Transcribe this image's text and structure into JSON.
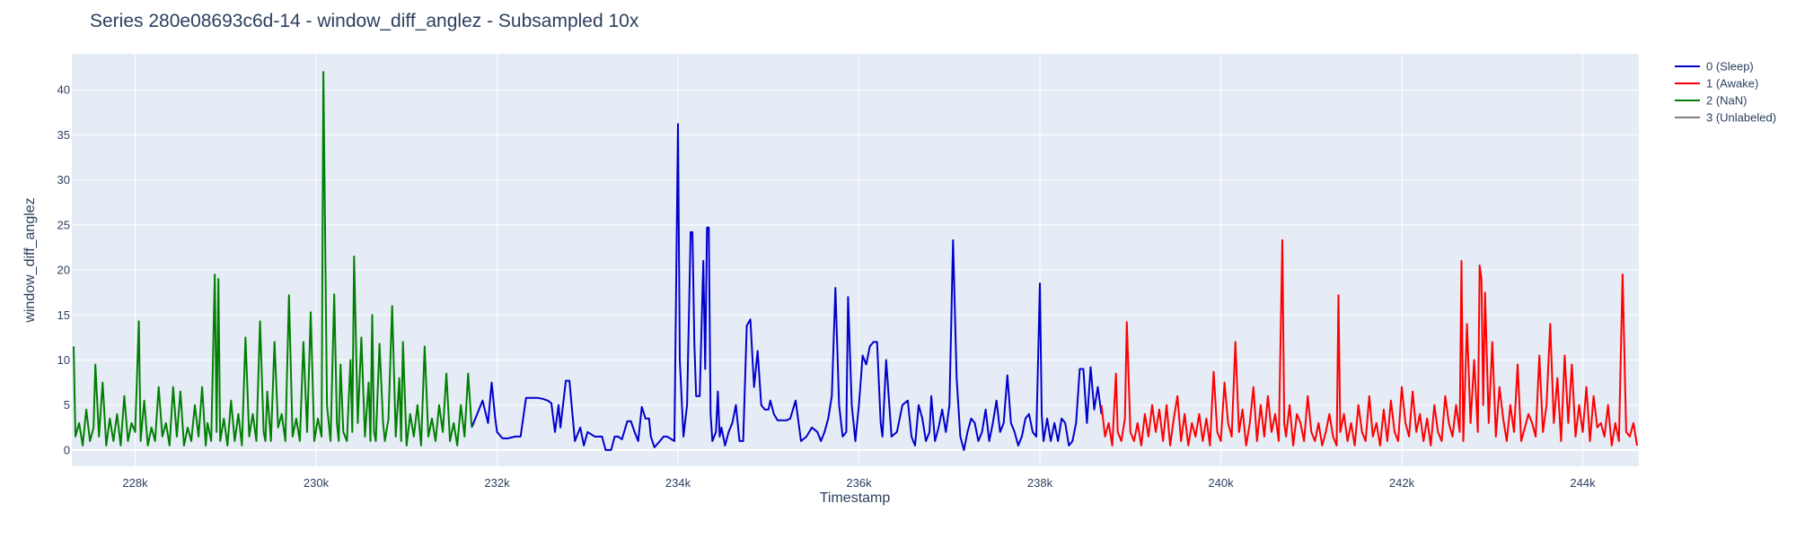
{
  "chart_data": {
    "type": "line",
    "title": "Series 280e08693c6d-14 - window_diff_anglez - Subsampled 10x",
    "xlabel": "Timestamp",
    "ylabel": "window_diff_anglez",
    "xlim": [
      227300,
      244620
    ],
    "ylim": [
      -1.8,
      44
    ],
    "x_ticks": [
      {
        "value": 228000,
        "label": "228k"
      },
      {
        "value": 230000,
        "label": "230k"
      },
      {
        "value": 232000,
        "label": "232k"
      },
      {
        "value": 234000,
        "label": "234k"
      },
      {
        "value": 236000,
        "label": "236k"
      },
      {
        "value": 238000,
        "label": "238k"
      },
      {
        "value": 240000,
        "label": "240k"
      },
      {
        "value": 242000,
        "label": "242k"
      },
      {
        "value": 244000,
        "label": "244k"
      }
    ],
    "y_ticks": [
      0,
      5,
      10,
      15,
      20,
      25,
      30,
      35,
      40
    ],
    "grid": true,
    "legend_position": "top-right",
    "series": [
      {
        "name": "0 (Sleep)",
        "color": "#0000cc",
        "x": [
          231720,
          231780,
          231840,
          231900,
          231940,
          231980,
          232000,
          232060,
          232120,
          232200,
          232260,
          232320,
          232400,
          232440,
          232500,
          232560,
          232600,
          232640,
          232680,
          232700,
          232760,
          232800,
          232860,
          232920,
          232960,
          233000,
          233080,
          233160,
          233200,
          233260,
          233300,
          233340,
          233380,
          233440,
          233480,
          233520,
          233560,
          233600,
          233640,
          233680,
          233700,
          233740,
          233800,
          233840,
          233880,
          233960,
          234000,
          234020,
          234060,
          234100,
          234140,
          234160,
          234180,
          234200,
          234240,
          234280,
          234300,
          234320,
          234340,
          234360,
          234380,
          234420,
          234440,
          234460,
          234480,
          234520,
          234560,
          234600,
          234640,
          234680,
          234720,
          234760,
          234800,
          234840,
          234880,
          234920,
          234960,
          235000,
          235020,
          235060,
          235100,
          235140,
          235180,
          235200,
          235240,
          235300,
          235360,
          235420,
          235480,
          235540,
          235580,
          235620,
          235660,
          235700,
          235740,
          235780,
          235820,
          235860,
          235880,
          235920,
          235960,
          236000,
          236040,
          236080,
          236120,
          236160,
          236200,
          236240,
          236260,
          236300,
          236360,
          236420,
          236480,
          236540,
          236580,
          236620,
          236660,
          236700,
          236740,
          236780,
          236800,
          236840,
          236880,
          236920,
          236960,
          237000,
          237040,
          237080,
          237120,
          237160,
          237200,
          237240,
          237280,
          237320,
          237360,
          237400,
          237440,
          237480,
          237520,
          237560,
          237600,
          237640,
          237680,
          237720,
          237760,
          237800,
          237840,
          237880,
          237920,
          237960,
          238000,
          238020,
          238040,
          238080,
          238120,
          238160,
          238200,
          238240,
          238280,
          238320,
          238360,
          238400,
          238440,
          238480,
          238520,
          238560,
          238600,
          238640,
          238680
        ],
        "y": [
          2.5,
          4.0,
          5.5,
          3.0,
          7.5,
          3.5,
          2.0,
          1.3,
          1.3,
          1.5,
          1.5,
          5.8,
          5.8,
          5.8,
          5.7,
          5.5,
          5.2,
          2.0,
          5.0,
          2.5,
          7.7,
          7.7,
          1.0,
          2.5,
          0.5,
          2.0,
          1.5,
          1.5,
          0.0,
          0.0,
          1.5,
          1.5,
          1.2,
          3.2,
          3.2,
          2.0,
          1.0,
          4.8,
          3.5,
          3.5,
          1.5,
          0.3,
          1.0,
          1.5,
          1.5,
          1.0,
          36.2,
          10.0,
          1.5,
          5.0,
          24.2,
          24.2,
          12.0,
          6.0,
          6.0,
          21.0,
          9.0,
          24.7,
          24.7,
          4.0,
          1.0,
          2.0,
          6.5,
          1.5,
          2.5,
          0.5,
          2.0,
          3.0,
          5.0,
          1.0,
          1.0,
          13.8,
          14.5,
          7.0,
          11.0,
          5.0,
          4.5,
          4.5,
          5.5,
          4.0,
          3.3,
          3.3,
          3.3,
          3.3,
          3.5,
          5.5,
          1.0,
          1.5,
          2.5,
          2.0,
          1.0,
          2.0,
          3.5,
          6.0,
          18.0,
          5.0,
          1.5,
          2.0,
          17.0,
          5.0,
          1.0,
          5.0,
          10.5,
          9.5,
          11.5,
          12.0,
          12.0,
          3.0,
          1.5,
          10.0,
          1.5,
          2.0,
          5.0,
          5.5,
          1.5,
          0.5,
          5.0,
          3.5,
          1.0,
          2.0,
          6.0,
          1.0,
          2.5,
          4.5,
          2.0,
          5.0,
          23.3,
          8.0,
          1.5,
          0.0,
          2.0,
          3.5,
          3.0,
          1.0,
          2.0,
          4.5,
          1.0,
          3.0,
          5.5,
          2.0,
          3.0,
          8.3,
          3.0,
          2.0,
          0.5,
          1.5,
          3.5,
          4.0,
          2.0,
          1.5,
          18.5,
          4.0,
          1.0,
          3.5,
          1.0,
          3.0,
          1.0,
          3.5,
          3.0,
          0.5,
          1.0,
          3.0,
          9.0,
          9.0,
          3.0,
          9.2,
          4.5,
          7.0,
          4.0
        ]
      },
      {
        "name": "1 (Awake)",
        "color": "#ff0000",
        "x": [
          238680,
          238720,
          238760,
          238800,
          238840,
          238860,
          238900,
          238940,
          238960,
          239000,
          239040,
          239080,
          239120,
          239160,
          239200,
          239240,
          239280,
          239320,
          239360,
          239400,
          239440,
          239480,
          239520,
          239560,
          239600,
          239640,
          239680,
          239720,
          239760,
          239800,
          239840,
          239880,
          239920,
          239960,
          240000,
          240040,
          240080,
          240120,
          240160,
          240200,
          240240,
          240280,
          240320,
          240360,
          240400,
          240440,
          240480,
          240520,
          240560,
          240600,
          240640,
          240680,
          240700,
          240720,
          240760,
          240800,
          240840,
          240880,
          240920,
          240960,
          241000,
          241040,
          241080,
          241120,
          241160,
          241200,
          241240,
          241280,
          241300,
          241320,
          241360,
          241400,
          241440,
          241480,
          241520,
          241560,
          241600,
          241640,
          241680,
          241720,
          241760,
          241800,
          241840,
          241880,
          241920,
          241960,
          242000,
          242040,
          242080,
          242120,
          242160,
          242200,
          242240,
          242280,
          242320,
          242360,
          242400,
          242440,
          242480,
          242520,
          242560,
          242600,
          242640,
          242660,
          242680,
          242720,
          242760,
          242800,
          242840,
          242860,
          242880,
          242900,
          242920,
          242960,
          243000,
          243040,
          243080,
          243120,
          243160,
          243200,
          243240,
          243280,
          243320,
          243360,
          243400,
          243440,
          243480,
          243520,
          243560,
          243600,
          243640,
          243680,
          243720,
          243760,
          243800,
          243840,
          243880,
          243920,
          243960,
          244000,
          244040,
          244080,
          244120,
          244160,
          244200,
          244240,
          244280,
          244320,
          244360,
          244400,
          244440,
          244480,
          244520,
          244560,
          244600
        ],
        "y": [
          5.0,
          1.5,
          3.0,
          0.5,
          8.5,
          2.0,
          1.0,
          3.5,
          14.2,
          2.0,
          1.0,
          3.0,
          0.5,
          4.0,
          1.5,
          5.0,
          2.0,
          4.5,
          1.0,
          5.0,
          0.5,
          3.5,
          6.0,
          1.0,
          4.0,
          0.5,
          3.0,
          1.5,
          4.0,
          1.0,
          3.5,
          0.5,
          8.7,
          2.0,
          1.0,
          7.5,
          3.0,
          1.5,
          12.0,
          2.0,
          4.5,
          0.5,
          3.0,
          7.0,
          1.0,
          5.0,
          1.5,
          6.0,
          2.0,
          4.0,
          1.0,
          23.3,
          3.0,
          1.5,
          5.0,
          0.5,
          4.0,
          3.0,
          1.0,
          6.0,
          2.0,
          1.0,
          3.0,
          0.5,
          2.0,
          4.0,
          1.5,
          0.5,
          17.2,
          2.0,
          4.0,
          1.0,
          3.0,
          0.5,
          5.0,
          2.0,
          1.0,
          6.0,
          1.5,
          3.0,
          0.5,
          4.5,
          1.0,
          5.5,
          2.0,
          1.0,
          7.0,
          3.0,
          1.5,
          6.5,
          2.0,
          4.0,
          1.0,
          3.5,
          0.5,
          5.0,
          2.0,
          1.0,
          6.0,
          3.0,
          1.5,
          5.0,
          2.0,
          21.0,
          1.0,
          14.0,
          3.0,
          10.0,
          2.0,
          20.5,
          19.0,
          5.0,
          17.5,
          3.0,
          12.0,
          1.5,
          7.0,
          3.5,
          1.0,
          5.0,
          2.0,
          9.5,
          1.0,
          2.5,
          4.0,
          3.0,
          1.5,
          10.5,
          2.0,
          5.0,
          14.0,
          3.0,
          8.0,
          1.0,
          10.5,
          3.0,
          9.5,
          1.5,
          5.0,
          2.0,
          7.0,
          1.0,
          6.0,
          2.5,
          3.0,
          1.5,
          5.0,
          0.5,
          3.0,
          1.0,
          19.5,
          2.0,
          1.5,
          3.0,
          0.5
        ]
      },
      {
        "name": "2 (NaN)",
        "color": "#008000",
        "x": [
          227320,
          227340,
          227380,
          227420,
          227460,
          227500,
          227540,
          227560,
          227600,
          227640,
          227680,
          227720,
          227760,
          227800,
          227840,
          227880,
          227920,
          227960,
          228000,
          228040,
          228060,
          228100,
          228140,
          228180,
          228220,
          228260,
          228300,
          228340,
          228380,
          228420,
          228460,
          228500,
          228540,
          228580,
          228620,
          228660,
          228700,
          228740,
          228780,
          228800,
          228840,
          228880,
          228900,
          228920,
          228940,
          228980,
          229020,
          229060,
          229100,
          229140,
          229180,
          229220,
          229260,
          229300,
          229340,
          229380,
          229420,
          229440,
          229460,
          229500,
          229540,
          229580,
          229620,
          229660,
          229700,
          229740,
          229780,
          229820,
          229860,
          229900,
          229940,
          229980,
          230020,
          230060,
          230080,
          230120,
          230160,
          230200,
          230230,
          230250,
          230270,
          230300,
          230340,
          230380,
          230400,
          230420,
          230460,
          230500,
          230540,
          230580,
          230600,
          230620,
          230640,
          230660,
          230700,
          230740,
          230760,
          230800,
          230840,
          230880,
          230920,
          230940,
          230960,
          231000,
          231040,
          231080,
          231120,
          231160,
          231200,
          231240,
          231280,
          231320,
          231360,
          231400,
          231440,
          231480,
          231520,
          231560,
          231600,
          231640,
          231680,
          231720
        ],
        "y": [
          11.5,
          1.5,
          3.0,
          0.5,
          4.5,
          1.0,
          2.5,
          9.5,
          1.5,
          7.5,
          0.5,
          3.5,
          1.0,
          4.0,
          0.5,
          6.0,
          1.0,
          3.0,
          2.0,
          14.3,
          1.0,
          5.5,
          0.5,
          2.5,
          1.0,
          7.0,
          1.5,
          3.0,
          0.5,
          7.0,
          1.5,
          6.5,
          0.5,
          2.5,
          1.0,
          5.0,
          1.5,
          7.0,
          0.5,
          3.0,
          1.0,
          19.5,
          2.0,
          19.0,
          1.0,
          3.5,
          0.5,
          5.5,
          1.0,
          4.0,
          0.5,
          12.5,
          1.5,
          4.0,
          1.0,
          14.3,
          2.0,
          1.0,
          6.5,
          1.0,
          12.0,
          2.5,
          4.0,
          1.0,
          17.2,
          1.5,
          3.5,
          1.0,
          12.0,
          2.0,
          15.3,
          1.0,
          3.5,
          1.5,
          42.0,
          5.0,
          1.0,
          17.3,
          3.0,
          1.0,
          9.5,
          2.0,
          1.0,
          10.0,
          2.0,
          21.5,
          3.0,
          12.5,
          1.5,
          7.5,
          1.0,
          15.0,
          2.0,
          1.0,
          11.8,
          3.0,
          1.0,
          3.5,
          16.0,
          1.5,
          8.0,
          1.0,
          12.0,
          0.5,
          4.0,
          1.5,
          5.0,
          0.5,
          11.5,
          1.5,
          3.5,
          1.0,
          5.0,
          2.0,
          8.5,
          1.0,
          3.0,
          0.5,
          5.0,
          1.5,
          8.5,
          2.5
        ]
      },
      {
        "name": "3 (Unlabeled)",
        "color": "#808080",
        "x": [],
        "y": []
      }
    ]
  }
}
